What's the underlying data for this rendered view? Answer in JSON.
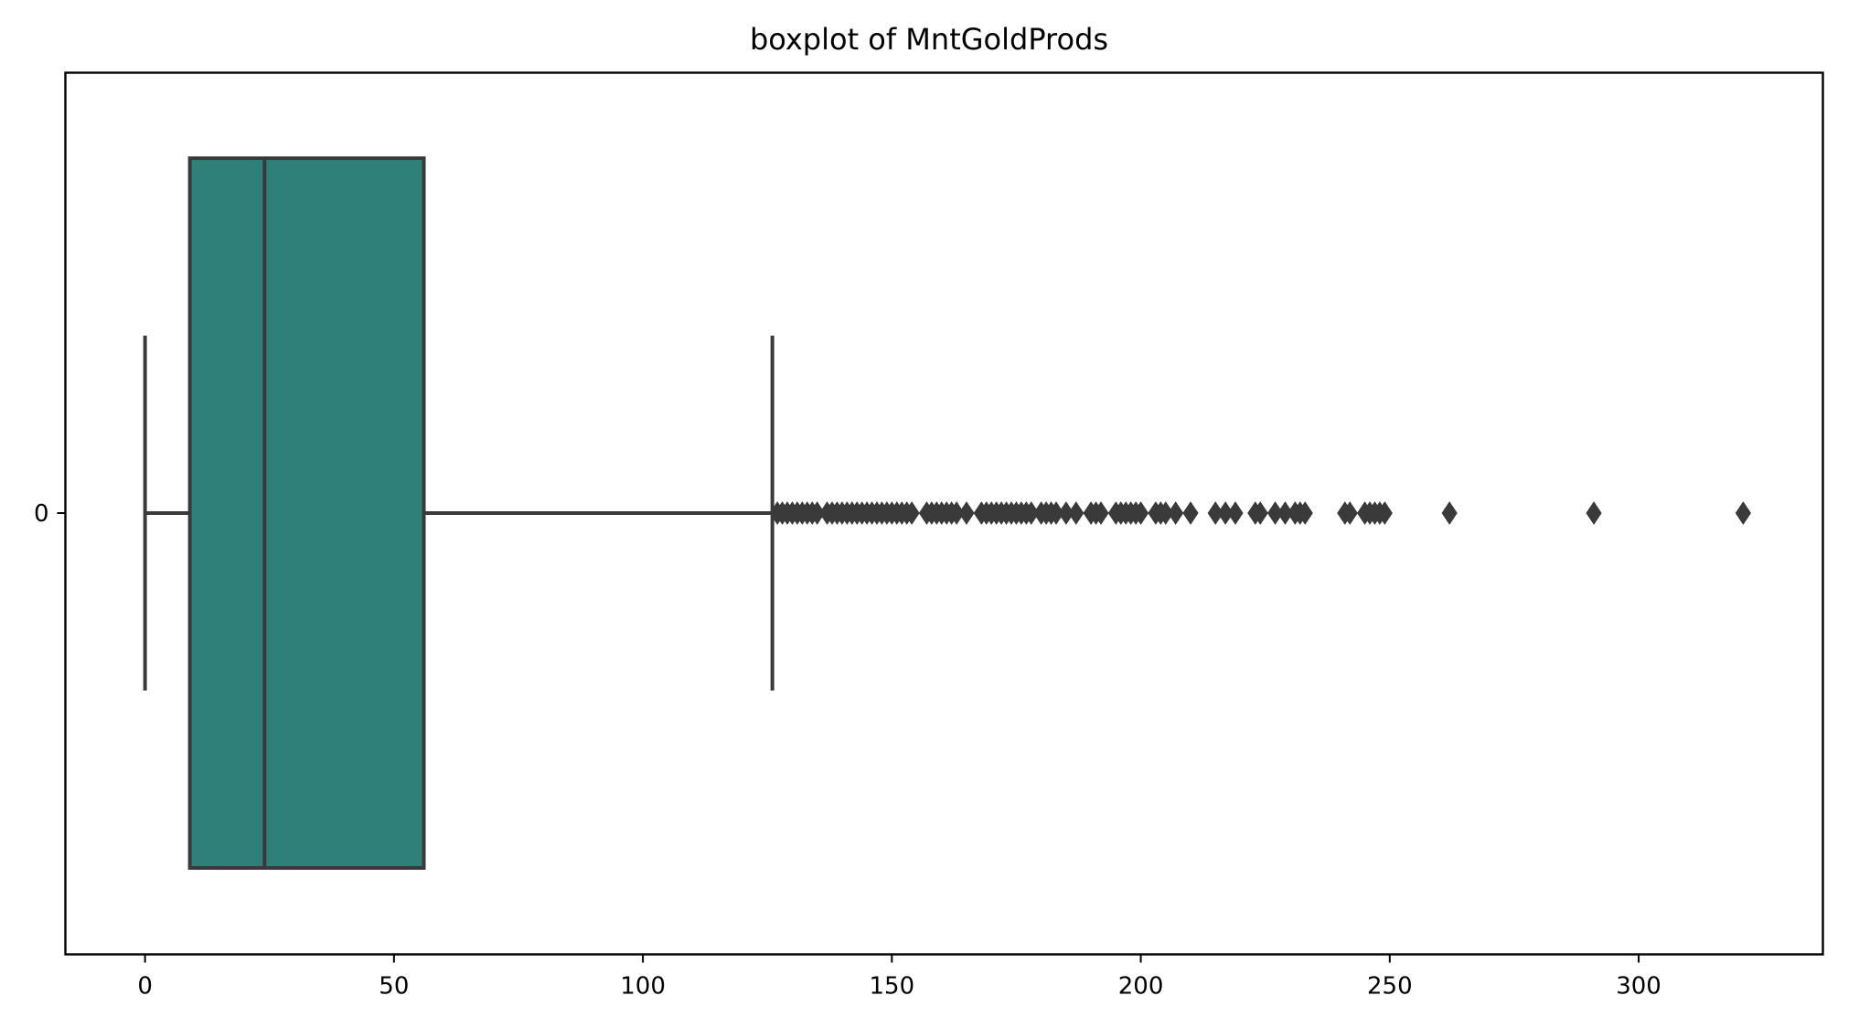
{
  "chart_data": {
    "type": "boxplot",
    "title": "boxplot of MntGoldProds",
    "xlabel": "",
    "ylabel": "",
    "orientation": "horizontal",
    "categories": [
      "0"
    ],
    "xlim": [
      -16,
      337
    ],
    "x_ticks": [
      0,
      50,
      100,
      150,
      200,
      250,
      300
    ],
    "x_tick_labels": [
      "0",
      "50",
      "100",
      "150",
      "200",
      "250",
      "300"
    ],
    "grid": false,
    "legend": "none",
    "box_color": "#2e8078",
    "line_color": "#3a3a3a",
    "box": {
      "min": 0,
      "q1": 9,
      "median": 24,
      "q3": 56,
      "max": 126
    },
    "outliers": [
      127,
      128,
      129,
      130,
      131,
      132,
      133,
      134,
      135,
      137,
      138,
      139,
      140,
      141,
      142,
      143,
      144,
      145,
      146,
      147,
      148,
      149,
      150,
      151,
      152,
      153,
      154,
      157,
      158,
      159,
      160,
      161,
      162,
      163,
      165,
      168,
      169,
      170,
      171,
      172,
      173,
      174,
      175,
      176,
      177,
      178,
      180,
      181,
      182,
      183,
      185,
      187,
      190,
      191,
      192,
      195,
      196,
      197,
      198,
      199,
      200,
      203,
      204,
      205,
      207,
      210,
      215,
      217,
      219,
      223,
      224,
      227,
      229,
      231,
      232,
      233,
      241,
      242,
      245,
      246,
      247,
      248,
      249,
      262,
      291,
      321
    ]
  }
}
